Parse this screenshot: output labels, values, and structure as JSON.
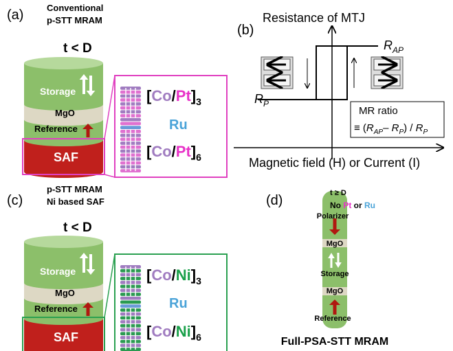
{
  "panel_a": {
    "label": "(a)",
    "title": [
      "Conventional",
      "p-STT MRAM"
    ],
    "condition": "t < D",
    "layers": {
      "storage": "Storage",
      "mgo": "MgO",
      "reference": "Reference",
      "saf": "SAF"
    },
    "saf_stack": {
      "top": [
        "[",
        "Co",
        "/",
        "Pt",
        "]",
        "3"
      ],
      "spacer": "Ru",
      "bottom": [
        "[",
        "Co",
        "/",
        "Pt",
        "]",
        "6"
      ]
    }
  },
  "panel_b": {
    "label": "(b)",
    "y_axis": "Resistance of MTJ",
    "x_axis": "Magnetic field (H) or Current (I)",
    "r_ap": [
      "R",
      "AP"
    ],
    "r_p": [
      "R",
      "P"
    ],
    "mr_title": "MR ratio",
    "mr_formula": [
      "≡ (",
      "R",
      "AP",
      "– ",
      "R",
      "P",
      ") / ",
      "R",
      "P"
    ]
  },
  "panel_c": {
    "label": "(c)",
    "title": [
      "p-STT MRAM",
      "Ni based SAF"
    ],
    "condition": "t < D",
    "layers": {
      "storage": "Storage",
      "mgo": "MgO",
      "reference": "Reference",
      "saf": "SAF"
    },
    "saf_stack": {
      "top": [
        "[",
        "Co",
        "/",
        "Ni",
        "]",
        "3"
      ],
      "spacer": "Ru",
      "bottom": [
        "[",
        "Co",
        "/",
        "Ni",
        "]",
        "6"
      ]
    }
  },
  "panel_d": {
    "label": "(d)",
    "condition": "t ≥ D",
    "note": [
      "No ",
      "Pt",
      " or ",
      "Ru"
    ],
    "layers": [
      "Polarizer",
      "MgO",
      "Storage",
      "MgO",
      "Reference"
    ],
    "caption": "Full-PSA-STT MRAM"
  }
}
